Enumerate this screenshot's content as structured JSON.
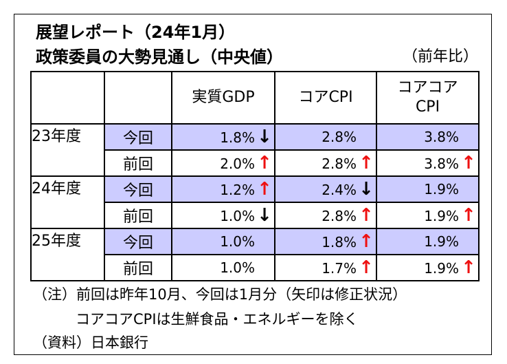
{
  "title": {
    "line1": "展望レポート（24年1月）",
    "line2": "政策委員の大勢見通し（中央値）",
    "unit": "（前年比）"
  },
  "headers": {
    "gdp": "実質GDP",
    "core": "コアCPI",
    "coreCore1": "コアコア",
    "coreCore2": "CPI"
  },
  "rows": [
    {
      "year": "23年度",
      "kind": "今回",
      "gdp": "1.8%",
      "gdp_arrow": "↓",
      "core": "2.8%",
      "core_arrow": "",
      "cc": "3.8%",
      "cc_arrow": ""
    },
    {
      "year": "",
      "kind": "前回",
      "gdp": "2.0%",
      "gdp_arrow": "↑",
      "core": "2.8%",
      "core_arrow": "↑",
      "cc": "3.8%",
      "cc_arrow": "↑"
    },
    {
      "year": "24年度",
      "kind": "今回",
      "gdp": "1.2%",
      "gdp_arrow": "↑",
      "core": "2.4%",
      "core_arrow": "↓",
      "cc": "1.9%",
      "cc_arrow": ""
    },
    {
      "year": "",
      "kind": "前回",
      "gdp": "1.0%",
      "gdp_arrow": "↓",
      "core": "2.8%",
      "core_arrow": "↑",
      "cc": "1.9%",
      "cc_arrow": "↑"
    },
    {
      "year": "25年度",
      "kind": "今回",
      "gdp": "1.0%",
      "gdp_arrow": "",
      "core": "1.8%",
      "core_arrow": "↑",
      "cc": "1.9%",
      "cc_arrow": ""
    },
    {
      "year": "",
      "kind": "前回",
      "gdp": "1.0%",
      "gdp_arrow": "",
      "core": "1.7%",
      "core_arrow": "↑",
      "cc": "1.9%",
      "cc_arrow": "↑"
    }
  ],
  "notes": {
    "note1": "（注）前回は昨年10月、今回は1月分（矢印は修正状況）",
    "note2": "コアコアCPIは生鮮食品・エネルギーを除く",
    "source": "（資料）日本銀行"
  },
  "colors": {
    "highlight": "#ccccff",
    "arrow_up": "#ee1111",
    "arrow_down": "#000000"
  }
}
